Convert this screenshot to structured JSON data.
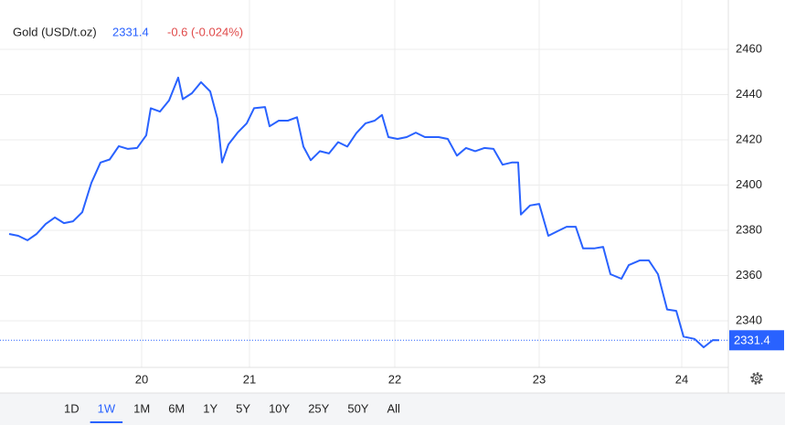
{
  "chart_data": {
    "type": "line",
    "title": "Gold (USD/t.oz)",
    "last_value": 2331.4,
    "change": "-0.6 (-0.024%)",
    "x": [
      10,
      20,
      30,
      40,
      50,
      60,
      70,
      80,
      90,
      100,
      110,
      120,
      130,
      140,
      150,
      160,
      165,
      175,
      185,
      195,
      200,
      210,
      220,
      230,
      238,
      243,
      250,
      260,
      270,
      278,
      290,
      295,
      305,
      315,
      325,
      332,
      340,
      350,
      360,
      370,
      380,
      390,
      400,
      410,
      418,
      425,
      435,
      445,
      455,
      465,
      480,
      490,
      500,
      510,
      520,
      530,
      540,
      550,
      560,
      567,
      570,
      580,
      590,
      600,
      610,
      620,
      630,
      638,
      650,
      660,
      668,
      680,
      688,
      700,
      710,
      720,
      730,
      740,
      748,
      760,
      770,
      780,
      787
    ],
    "series": [
      {
        "name": "Gold",
        "color": "#2962ff",
        "values": [
          2378.4,
          2377.6,
          2375.6,
          2378.4,
          2382.8,
          2385.7,
          2383.2,
          2384,
          2388,
          2401,
          2410,
          2411.3,
          2417.2,
          2416,
          2416.4,
          2422,
          2434,
          2432.5,
          2437.4,
          2447.5,
          2438,
          2440.6,
          2445.5,
          2441.4,
          2429.3,
          2410,
          2418,
          2423.2,
          2427.3,
          2434,
          2434.5,
          2426,
          2428.5,
          2428.5,
          2430,
          2417,
          2411,
          2415,
          2414,
          2419,
          2417,
          2423,
          2427.3,
          2428.5,
          2431,
          2421.2,
          2420.4,
          2421.2,
          2423.2,
          2421.2,
          2421.2,
          2420.4,
          2413,
          2416.4,
          2415,
          2416.4,
          2416,
          2409,
          2410,
          2410,
          2387,
          2391,
          2391.7,
          2377.6,
          2379.6,
          2381.6,
          2381.6,
          2372,
          2372,
          2372.7,
          2360.6,
          2358.6,
          2364.6,
          2366.7,
          2366.7,
          2360.6,
          2345,
          2344.4,
          2333,
          2332,
          2328.3,
          2331.5,
          2331.4
        ]
      }
    ],
    "xlim": [
      0,
      797
    ],
    "xticks": [
      {
        "value": 155,
        "label": "20"
      },
      {
        "value": 273,
        "label": "21"
      },
      {
        "value": 432,
        "label": "22"
      },
      {
        "value": 590,
        "label": "23"
      },
      {
        "value": 746,
        "label": "24"
      }
    ],
    "ylim": [
      2319.4,
      2479.8
    ],
    "yticks": [
      2340,
      2360,
      2380,
      2400,
      2420,
      2440,
      2460
    ],
    "grid": true,
    "ranges": [
      "1D",
      "1W",
      "1M",
      "6M",
      "1Y",
      "5Y",
      "10Y",
      "25Y",
      "50Y",
      "All"
    ],
    "selected_range_index": 1
  }
}
